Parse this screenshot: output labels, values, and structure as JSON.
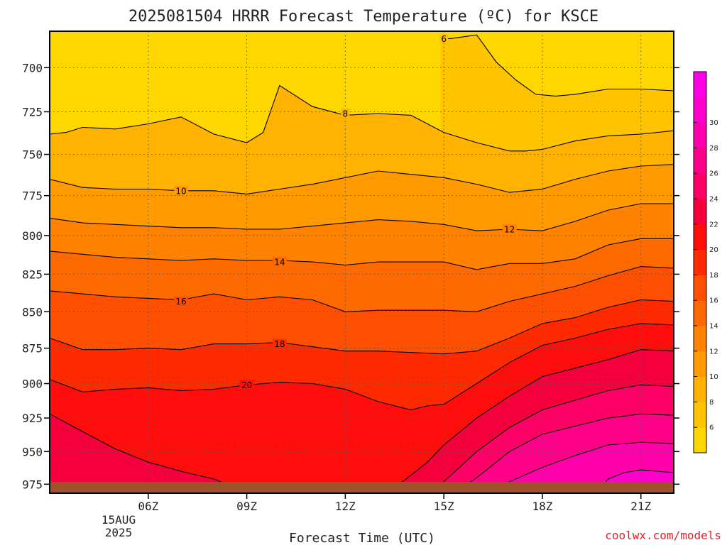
{
  "chart_data": {
    "type": "contour",
    "title": "2025081504 HRRR Forecast Temperature (ºC) for KSCE",
    "xlabel": "Forecast Time (UTC)",
    "ylabel": "",
    "x_ticks": [
      "06Z",
      "09Z",
      "12Z",
      "15Z",
      "18Z",
      "21Z"
    ],
    "x_date": [
      "15AUG",
      "2025"
    ],
    "x_hours": [
      6,
      9,
      12,
      15,
      18,
      21
    ],
    "xlim": [
      3,
      22
    ],
    "y_ticks": [
      700,
      725,
      750,
      775,
      800,
      825,
      850,
      875,
      900,
      925,
      950,
      975
    ],
    "ylim": [
      680,
      982
    ],
    "y_scale": "log-pressure",
    "grid": true,
    "levels": [
      6,
      8,
      10,
      12,
      14,
      16,
      18,
      20,
      22,
      24,
      26,
      28,
      30
    ],
    "colorbar_ticks": [
      "6",
      "8",
      "10",
      "12",
      "14",
      "16",
      "18",
      "20",
      "22",
      "24",
      "26",
      "28",
      "30"
    ],
    "colorbar_colors": [
      "#ffd700",
      "#ffc400",
      "#ffb300",
      "#ff9a00",
      "#ff8200",
      "#ff6a00",
      "#ff4f00",
      "#ff2a00",
      "#ff0d0d",
      "#f5003c",
      "#ff0066",
      "#ff0088",
      "#ff00aa",
      "#ff00cc",
      "#ff00e6"
    ],
    "surface_color": "#a0522d",
    "contours": [
      {
        "level": 6,
        "label": "6",
        "label_at": [
          15,
          684
        ],
        "x": [
          14.9,
          15.2,
          15.6,
          16.0,
          16.6,
          17.2,
          17.8,
          18.4,
          19.0,
          20.0,
          21.0,
          22.0
        ],
        "y": [
          684,
          684,
          683,
          682,
          697,
          707,
          715,
          716,
          715,
          712,
          712,
          713
        ]
      },
      {
        "level": 8,
        "label": "8",
        "label_at": [
          12,
          726
        ],
        "x": [
          3.0,
          3.5,
          4.0,
          5.0,
          6.0,
          7.0,
          8.0,
          9.0,
          9.5,
          10.0,
          11.0,
          12.0,
          13.0,
          14.0,
          15.0,
          16.0,
          17.0,
          17.5,
          18.0,
          19.0,
          20.0,
          21.0,
          22.0
        ],
        "y": [
          738,
          737,
          734,
          735,
          732,
          728,
          738,
          743,
          737,
          710,
          722,
          727,
          726,
          727,
          737,
          743,
          748,
          748,
          747,
          742,
          739,
          738,
          736
        ]
      },
      {
        "level": 10,
        "label": "10",
        "label_at": [
          7,
          772
        ],
        "x": [
          3.0,
          4.0,
          5.0,
          6.0,
          7.0,
          8.0,
          9.0,
          10.0,
          11.0,
          12.0,
          13.0,
          14.0,
          15.0,
          16.0,
          17.0,
          18.0,
          19.0,
          20.0,
          21.0,
          22.0
        ],
        "y": [
          765,
          770,
          771,
          771,
          772,
          772,
          774,
          771,
          768,
          764,
          760,
          762,
          764,
          768,
          773,
          771,
          765,
          760,
          757,
          756
        ]
      },
      {
        "level": 12,
        "label": "12",
        "label_at": [
          17,
          796
        ],
        "x": [
          3.0,
          4.0,
          5.0,
          6.0,
          7.0,
          8.0,
          9.0,
          10.0,
          11.0,
          12.0,
          13.0,
          14.0,
          15.0,
          16.0,
          17.0,
          18.0,
          19.0,
          20.0,
          21.0,
          22.0
        ],
        "y": [
          789,
          792,
          793,
          794,
          795,
          795,
          796,
          796,
          794,
          792,
          790,
          791,
          793,
          797,
          796,
          797,
          791,
          784,
          780,
          780
        ]
      },
      {
        "level": 14,
        "label": "14",
        "label_at": [
          10,
          817
        ],
        "x": [
          3.0,
          4.0,
          5.0,
          6.0,
          7.0,
          8.0,
          9.0,
          10.0,
          11.0,
          12.0,
          13.0,
          14.0,
          15.0,
          16.0,
          17.0,
          18.0,
          19.0,
          20.0,
          21.0,
          22.0
        ],
        "y": [
          810,
          812,
          814,
          815,
          816,
          815,
          816,
          816,
          817,
          819,
          817,
          817,
          817,
          822,
          818,
          818,
          815,
          806,
          802,
          802
        ]
      },
      {
        "level": 16,
        "label": "16",
        "label_at": [
          7,
          843
        ],
        "x": [
          3.0,
          4.0,
          5.0,
          6.0,
          7.0,
          8.0,
          9.0,
          10.0,
          11.0,
          12.0,
          13.0,
          14.0,
          15.0,
          16.0,
          17.0,
          18.0,
          19.0,
          20.0,
          21.0,
          22.0
        ],
        "y": [
          836,
          838,
          840,
          841,
          842,
          838,
          842,
          840,
          842,
          850,
          849,
          849,
          849,
          850,
          843,
          838,
          833,
          826,
          820,
          821
        ]
      },
      {
        "level": 18,
        "label": "18",
        "label_at": [
          10,
          872
        ],
        "x": [
          3.0,
          4.0,
          5.0,
          6.0,
          7.0,
          8.0,
          9.0,
          10.0,
          11.0,
          12.0,
          13.0,
          14.0,
          15.0,
          16.0,
          17.0,
          18.0,
          19.0,
          20.0,
          21.0,
          22.0
        ],
        "y": [
          868,
          876,
          876,
          875,
          876,
          872,
          872,
          871,
          874,
          877,
          877,
          878,
          879,
          877,
          868,
          858,
          854,
          847,
          842,
          843
        ]
      },
      {
        "level": 20,
        "label": "20",
        "label_at": [
          9,
          901
        ],
        "x": [
          3.0,
          4.0,
          5.0,
          6.0,
          7.0,
          8.0,
          9.0,
          10.0,
          11.0,
          12.0,
          13.0,
          13.5,
          14.0,
          14.5,
          15.0,
          16.0,
          17.0,
          18.0,
          19.0,
          20.0,
          21.0,
          22.0
        ],
        "y": [
          897,
          906,
          904,
          903,
          905,
          904,
          901,
          899,
          900,
          904,
          913,
          916,
          919,
          916,
          915,
          900,
          885,
          873,
          868,
          862,
          858,
          859
        ]
      },
      {
        "level": 22,
        "label": "",
        "label_at": null,
        "x": [
          3.0,
          4.0,
          5.0,
          6.0,
          7.0,
          8.0,
          8.5,
          8.6,
          13.5,
          13.8,
          14.5,
          15.0,
          16.0,
          17.0,
          18.0,
          19.0,
          20.0,
          21.0,
          22.0
        ],
        "y": [
          922,
          935,
          948,
          958,
          965,
          971,
          976,
          977,
          977,
          972,
          958,
          945,
          925,
          909,
          895,
          889,
          883,
          876,
          877
        ]
      },
      {
        "level": 24,
        "label": "",
        "label_at": null,
        "x": [
          14.8,
          15.0,
          16.0,
          17.0,
          18.0,
          19.0,
          20.0,
          21.0,
          22.0
        ],
        "y": [
          977,
          973,
          950,
          932,
          919,
          912,
          905,
          901,
          902
        ]
      },
      {
        "level": 26,
        "label": "",
        "label_at": null,
        "x": [
          15.6,
          16.0,
          17.0,
          18.0,
          19.0,
          20.0,
          21.0,
          22.0
        ],
        "y": [
          977,
          970,
          950,
          937,
          931,
          925,
          922,
          923
        ]
      },
      {
        "level": 28,
        "label": "",
        "label_at": null,
        "x": [
          16.6,
          17.0,
          18.0,
          19.0,
          20.0,
          21.0,
          22.0
        ],
        "y": [
          977,
          973,
          962,
          953,
          945,
          943,
          944
        ]
      },
      {
        "level": 30,
        "label": "",
        "label_at": null,
        "x": [
          19.8,
          20.0,
          20.5,
          21.0,
          21.5,
          22.0
        ],
        "y": [
          977,
          971,
          966,
          964,
          965,
          966
        ]
      }
    ]
  },
  "credit": "coolwx.com/models"
}
